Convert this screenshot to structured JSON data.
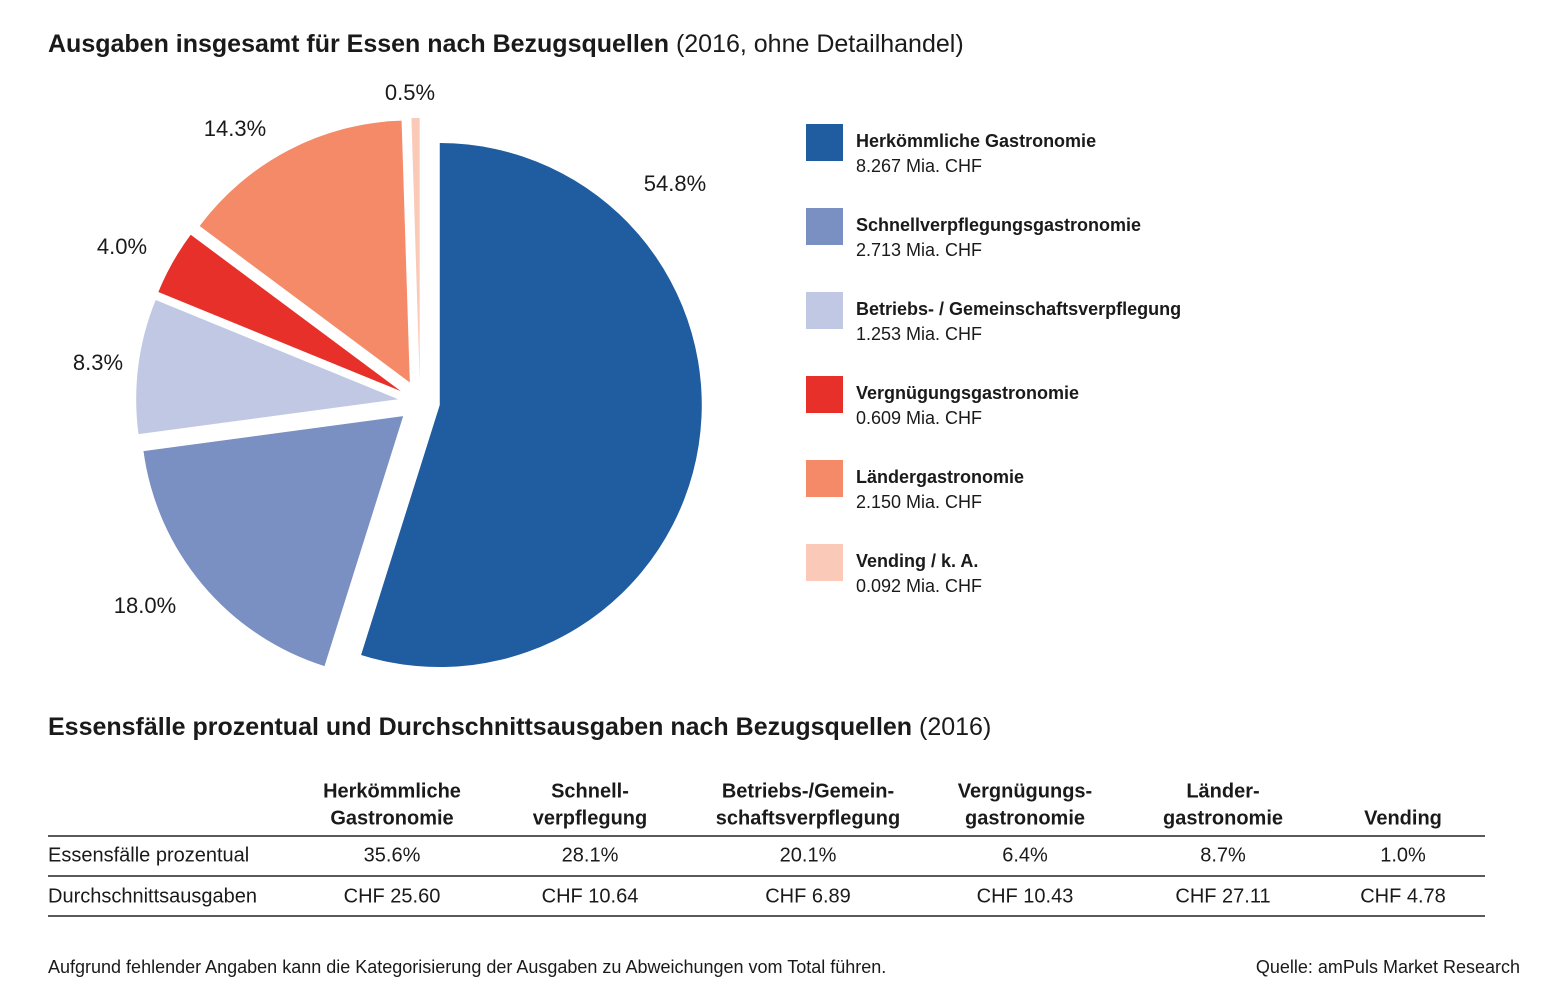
{
  "chart_data": {
    "type": "pie",
    "title": "Ausgaben insgesamt für Essen nach Bezugsquellen",
    "subtitle": "(2016, ohne Detailhandel)",
    "categories": [
      "Herkömmliche Gastronomie",
      "Schnellverpflegungsgastronomie",
      "Betriebs- / Gemeinschaftsverpflegung",
      "Vergnügungsgastronomie",
      "Ländergastronomie",
      "Vending / k. A."
    ],
    "values": [
      54.8,
      18.0,
      8.3,
      4.0,
      14.3,
      0.5
    ],
    "value_labels": [
      "54.8%",
      "18.0%",
      "8.3%",
      "4.0%",
      "14.3%",
      "0.5%"
    ],
    "amounts": [
      "8.267 Mia. CHF",
      "2.713 Mia. CHF",
      "1.253 Mia. CHF",
      "0.609 Mia. CHF",
      "2.150 Mia. CHF",
      "0.092 Mia. CHF"
    ],
    "colors": [
      "#1f5ca0",
      "#7a8fc2",
      "#c0c8e4",
      "#e8302a",
      "#f58a68",
      "#fac9b8"
    ]
  },
  "table": {
    "title": "Essensfälle prozentual und Durchschnittsausgaben nach Bezugsquellen",
    "subtitle": "(2016)",
    "columns": [
      [
        "Herkömmliche",
        "Gastronomie"
      ],
      [
        "Schnell-",
        "verpflegung"
      ],
      [
        "Betriebs-/Gemein-",
        "schaftsverpflegung"
      ],
      [
        "Vergnügungs-",
        "gastronomie"
      ],
      [
        "Länder-",
        "gastronomie"
      ],
      [
        "Vending"
      ]
    ],
    "rows": [
      [
        "Essensfälle prozentual",
        "35.6%",
        "28.1%",
        "20.1%",
        "6.4%",
        "8.7%",
        "1.0%"
      ],
      [
        "Durchschnittsausgaben",
        "CHF 25.60",
        "CHF 10.64",
        "CHF 6.89",
        "CHF 10.43",
        "CHF 27.11",
        "CHF 4.78"
      ]
    ]
  },
  "footnote": "Aufgrund fehlender Angaben kann die Kategorisierung der Ausgaben zu Abweichungen vom Total führen.",
  "source": "Quelle: amPuls Market Research"
}
